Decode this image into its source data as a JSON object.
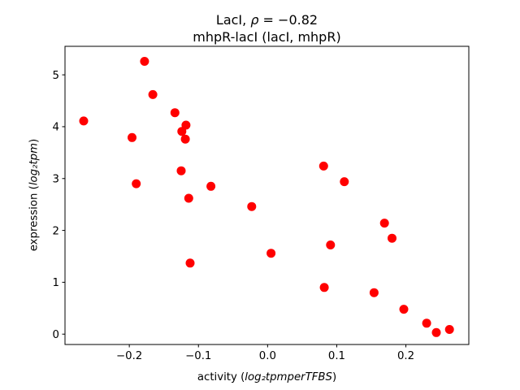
{
  "figure": {
    "background": "#ffffff",
    "title": {
      "line1_prefix": "LacI, ",
      "line1_rho": "ρ",
      "line1_suffix": " = −0.82",
      "line2": "mhpR-lacI (lacI, mhpR)"
    },
    "xlabel": {
      "prefix": "activity (",
      "math": "log₂tpmperTFBS",
      "suffix": ")"
    },
    "ylabel": {
      "prefix": "expression (",
      "math": "log₂tpm",
      "suffix": ")"
    }
  },
  "chart_data": {
    "type": "scatter",
    "title": "LacI, ρ = −0.82",
    "subtitle": "mhpR-lacI (lacI, mhpR)",
    "xlabel": "activity (log₂tpmperTFBS)",
    "ylabel": "expression (log₂tpm)",
    "marker_color": "#ff0000",
    "marker_radius_px": 5.5,
    "grid": false,
    "legend": "none",
    "xlim": [
      -0.293,
      0.291
    ],
    "ylim": [
      -0.2,
      5.55
    ],
    "x_ticks": [
      -0.2,
      -0.1,
      0.0,
      0.1,
      0.2
    ],
    "x_tick_labels": [
      "−0.2",
      "−0.1",
      "0.0",
      "0.1",
      "0.2"
    ],
    "y_ticks": [
      0,
      1,
      2,
      3,
      4,
      5
    ],
    "y_tick_labels": [
      "0",
      "1",
      "2",
      "3",
      "4",
      "5"
    ],
    "points": [
      [
        -0.266,
        4.11
      ],
      [
        -0.196,
        3.79
      ],
      [
        -0.19,
        2.9
      ],
      [
        -0.178,
        5.26
      ],
      [
        -0.166,
        4.62
      ],
      [
        -0.134,
        4.27
      ],
      [
        -0.118,
        4.03
      ],
      [
        -0.124,
        3.91
      ],
      [
        -0.119,
        3.76
      ],
      [
        -0.125,
        3.15
      ],
      [
        -0.114,
        2.62
      ],
      [
        -0.112,
        1.37
      ],
      [
        -0.082,
        2.85
      ],
      [
        -0.023,
        2.46
      ],
      [
        0.005,
        1.56
      ],
      [
        0.081,
        3.24
      ],
      [
        0.082,
        0.9
      ],
      [
        0.091,
        1.72
      ],
      [
        0.111,
        2.94
      ],
      [
        0.154,
        0.8
      ],
      [
        0.169,
        2.14
      ],
      [
        0.18,
        1.85
      ],
      [
        0.197,
        0.48
      ],
      [
        0.23,
        0.21
      ],
      [
        0.244,
        0.03
      ],
      [
        0.263,
        0.09
      ]
    ]
  }
}
